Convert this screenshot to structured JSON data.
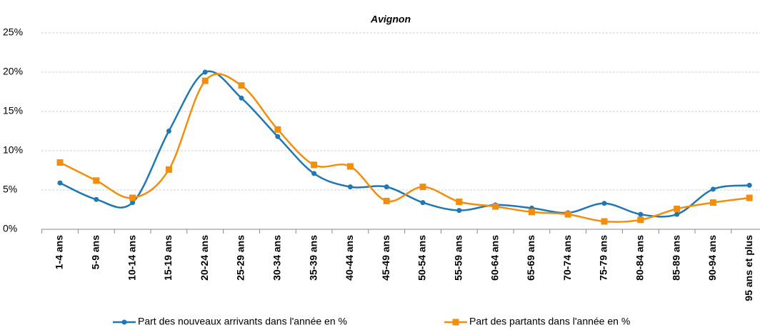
{
  "chart_data": {
    "type": "line",
    "title": "Avignon",
    "categories": [
      "1-4 ans",
      "5-9 ans",
      "10-14 ans",
      "15-19 ans",
      "20-24 ans",
      "25-29 ans",
      "30-34 ans",
      "35-39 ans",
      "40-44 ans",
      "45-49 ans",
      "50-54 ans",
      "55-59 ans",
      "60-64 ans",
      "65-69 ans",
      "70-74 ans",
      "75-79 ans",
      "80-84 ans",
      "85-89 ans",
      "90-94 ans",
      "95 ans et plus"
    ],
    "series": [
      {
        "name": "Part des nouveaux arrivants dans l'année en %",
        "color": "#1f77b4",
        "marker": "circle",
        "values": [
          5.9,
          3.8,
          3.4,
          12.5,
          20.0,
          16.7,
          11.8,
          7.1,
          5.4,
          5.4,
          3.4,
          2.4,
          3.1,
          2.7,
          2.1,
          3.3,
          1.9,
          1.9,
          5.1,
          5.6
        ]
      },
      {
        "name": "Part des partants dans l'année en %",
        "color": "#f28e0c",
        "marker": "square",
        "values": [
          8.5,
          6.2,
          4.0,
          7.6,
          18.9,
          18.3,
          12.7,
          8.2,
          8.0,
          3.6,
          5.4,
          3.5,
          2.9,
          2.2,
          1.9,
          1.0,
          1.2,
          2.6,
          3.4,
          4.0
        ]
      }
    ],
    "ylim": [
      0,
      25
    ],
    "yticks": [
      {
        "value": 0,
        "label": "0%"
      },
      {
        "value": 5,
        "label": "5%"
      },
      {
        "value": 10,
        "label": "10%"
      },
      {
        "value": 15,
        "label": "15%"
      },
      {
        "value": 20,
        "label": "20%"
      },
      {
        "value": 25,
        "label": "25%"
      }
    ],
    "grid": true,
    "smooth": true,
    "legend": "bottom"
  }
}
